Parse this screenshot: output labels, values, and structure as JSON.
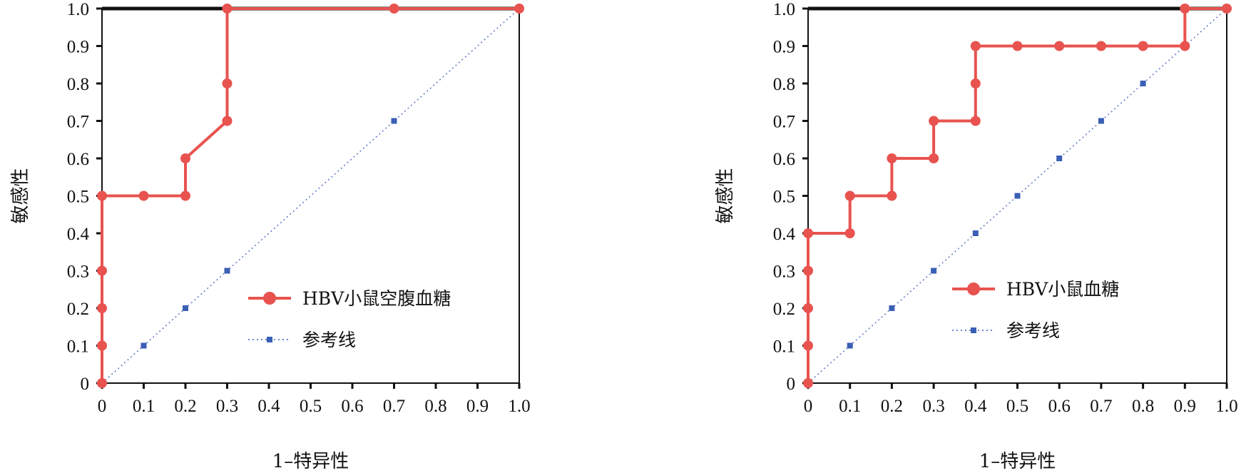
{
  "chart_data": [
    {
      "type": "line",
      "xlabel": "1–特异性",
      "ylabel": "敏感性",
      "xlim": [
        0,
        1
      ],
      "ylim": [
        0,
        1
      ],
      "x_ticks": [
        "0",
        "0.1",
        "0.2",
        "0.3",
        "0.4",
        "0.5",
        "0.6",
        "0.7",
        "0.8",
        "0.9",
        "1.0"
      ],
      "y_ticks": [
        "0",
        "0.1",
        "0.2",
        "0.3",
        "0.4",
        "0.5",
        "0.6",
        "0.7",
        "0.8",
        "0.9",
        "1.0"
      ],
      "legend_position": "lower-right",
      "series": [
        {
          "name": "HBV小鼠空腹血糖",
          "color": "#e8534f",
          "style": "solid",
          "marker": "circle",
          "x": [
            0,
            0,
            0,
            0,
            0,
            0.1,
            0.2,
            0.2,
            0.3,
            0.3,
            0.3,
            0.7,
            1.0
          ],
          "y": [
            0,
            0.1,
            0.2,
            0.3,
            0.5,
            0.5,
            0.5,
            0.6,
            0.7,
            0.8,
            1.0,
            1.0,
            1.0
          ]
        },
        {
          "name": "参考线",
          "color": "#3a5fb5",
          "style": "dotted",
          "marker": "square",
          "x": [
            0,
            0.1,
            0.2,
            0.3,
            0.7,
            1.0
          ],
          "y": [
            0,
            0.1,
            0.2,
            0.3,
            0.7,
            1.0
          ]
        }
      ]
    },
    {
      "type": "line",
      "xlabel": "1–特异性",
      "ylabel": "敏感性",
      "xlim": [
        0,
        1
      ],
      "ylim": [
        0,
        1
      ],
      "x_ticks": [
        "0",
        "0.1",
        "0.2",
        "0.3",
        "0.4",
        "0.5",
        "0.6",
        "0.7",
        "0.8",
        "0.9",
        "1.0"
      ],
      "y_ticks": [
        "0",
        "0.1",
        "0.2",
        "0.3",
        "0.4",
        "0.5",
        "0.6",
        "0.7",
        "0.8",
        "0.9",
        "1.0"
      ],
      "legend_position": "lower-right",
      "series": [
        {
          "name": "HBV小鼠血糖",
          "color": "#e8534f",
          "style": "solid",
          "marker": "circle",
          "x": [
            0,
            0,
            0,
            0,
            0,
            0.1,
            0.1,
            0.2,
            0.2,
            0.3,
            0.3,
            0.4,
            0.4,
            0.4,
            0.5,
            0.6,
            0.7,
            0.8,
            0.9,
            0.9,
            1.0
          ],
          "y": [
            0,
            0.1,
            0.2,
            0.3,
            0.4,
            0.4,
            0.5,
            0.5,
            0.6,
            0.6,
            0.7,
            0.7,
            0.8,
            0.9,
            0.9,
            0.9,
            0.9,
            0.9,
            0.9,
            1.0,
            1.0
          ]
        },
        {
          "name": "参考线",
          "color": "#3a5fb5",
          "style": "dotted",
          "marker": "square",
          "x": [
            0,
            0.1,
            0.2,
            0.3,
            0.4,
            0.5,
            0.6,
            0.7,
            0.8,
            1.0
          ],
          "y": [
            0,
            0.1,
            0.2,
            0.3,
            0.4,
            0.5,
            0.6,
            0.7,
            0.8,
            1.0
          ]
        }
      ]
    }
  ]
}
